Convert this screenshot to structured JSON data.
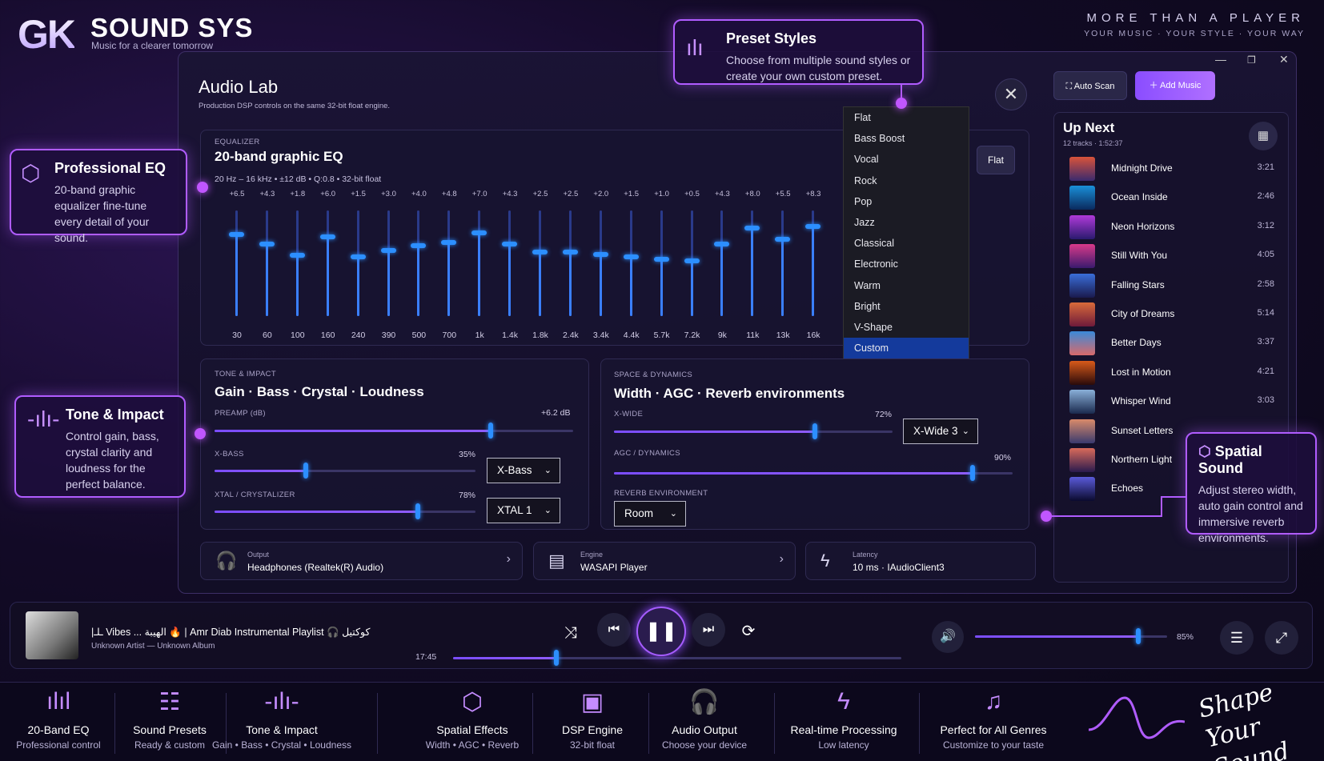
{
  "brand": {
    "logo": "GK",
    "name": "SOUND SYS",
    "tagline": "Music for a clearer tomorrow"
  },
  "motto": {
    "line1": "MORE THAN A PLAYER",
    "line2": "YOUR MUSIC · YOUR STYLE · YOUR WAY"
  },
  "callouts": {
    "preset": {
      "title": "Preset Styles",
      "text": "Choose from multiple sound styles or create your own custom preset."
    },
    "eq": {
      "title": "Professional EQ",
      "text": "20-band graphic equalizer fine-tune every detail of your sound."
    },
    "tone": {
      "title": "Tone & Impact",
      "text": "Control gain, bass, crystal clarity and loudness for the perfect balance."
    },
    "spatial": {
      "title": "Spatial Sound",
      "text": "Adjust stereo width, auto gain control and immersive reverb environments."
    }
  },
  "window": {
    "title": "Audio Lab",
    "subtitle": "Production DSP controls on the same 32-bit float engine.",
    "close": "✕"
  },
  "equalizer": {
    "section": "EQUALIZER",
    "title": "20-band graphic EQ",
    "meta": "20 Hz – 16 kHz  •  ±12 dB  •  Q:0.8  •  32-bit float",
    "flat_button": "Flat",
    "bands": [
      {
        "freq": "30",
        "db": "+6.5",
        "value": 6.5
      },
      {
        "freq": "60",
        "db": "+4.3",
        "value": 4.3
      },
      {
        "freq": "100",
        "db": "+1.8",
        "value": 1.8
      },
      {
        "freq": "160",
        "db": "+6.0",
        "value": 6.0
      },
      {
        "freq": "240",
        "db": "+1.5",
        "value": 1.5
      },
      {
        "freq": "390",
        "db": "+3.0",
        "value": 3.0
      },
      {
        "freq": "500",
        "db": "+4.0",
        "value": 4.0
      },
      {
        "freq": "700",
        "db": "+4.8",
        "value": 4.8
      },
      {
        "freq": "1k",
        "db": "+7.0",
        "value": 7.0
      },
      {
        "freq": "1.4k",
        "db": "+4.3",
        "value": 4.3
      },
      {
        "freq": "1.8k",
        "db": "+2.5",
        "value": 2.5
      },
      {
        "freq": "2.4k",
        "db": "+2.5",
        "value": 2.5
      },
      {
        "freq": "3.4k",
        "db": "+2.0",
        "value": 2.0
      },
      {
        "freq": "4.4k",
        "db": "+1.5",
        "value": 1.5
      },
      {
        "freq": "5.7k",
        "db": "+1.0",
        "value": 1.0
      },
      {
        "freq": "7.2k",
        "db": "+0.5",
        "value": 0.5
      },
      {
        "freq": "9k",
        "db": "+4.3",
        "value": 4.3
      },
      {
        "freq": "11k",
        "db": "+8.0",
        "value": 8.0
      },
      {
        "freq": "13k",
        "db": "+5.5",
        "value": 5.5
      },
      {
        "freq": "16k",
        "db": "+8.3",
        "value": 8.3
      }
    ]
  },
  "presets": {
    "items": [
      "Flat",
      "Bass Boost",
      "Vocal",
      "Rock",
      "Pop",
      "Jazz",
      "Classical",
      "Electronic",
      "Warm",
      "Bright",
      "V-Shape",
      "Custom"
    ],
    "selected": "Custom"
  },
  "tone": {
    "section": "TONE & IMPACT",
    "title": "Gain · Bass · Crystal · Loudness",
    "preamp_label": "PREAMP (dB)",
    "preamp_value": "+6.2 dB",
    "preamp_level": 0.77,
    "xbass_label": "X-BASS",
    "xbass_value": "35%",
    "xbass_level": 0.35,
    "xbass_select": "X-Bass",
    "xtal_label": "XTAL / CRYSTALIZER",
    "xtal_value": "78%",
    "xtal_level": 0.78,
    "xtal_select": "XTAL 1"
  },
  "space": {
    "section": "SPACE & DYNAMICS",
    "title": "Width · AGC · Reverb environments",
    "xwide_label": "X-WIDE",
    "xwide_value": "72%",
    "xwide_level": 0.72,
    "xwide_select": "X-Wide 3",
    "agc_label": "AGC / DYNAMICS",
    "agc_value": "90%",
    "agc_level": 0.9,
    "reverb_label": "REVERB ENVIRONMENT",
    "reverb_select": "Room"
  },
  "info": {
    "output": {
      "label": "Output",
      "value": "Headphones (Realtek(R) Audio)"
    },
    "engine": {
      "label": "Engine",
      "value": "WASAPI Player"
    },
    "latency": {
      "label": "Latency",
      "value": "10 ms · IAudioClient3"
    }
  },
  "toolbar": {
    "auto_scan": "Auto Scan",
    "add_music": "Add Music"
  },
  "upnext": {
    "title": "Up Next",
    "meta": "12 tracks · 1:52:37",
    "tracks": [
      {
        "name": "Midnight Drive",
        "duration": "3:21"
      },
      {
        "name": "Ocean Inside",
        "duration": "2:46"
      },
      {
        "name": "Neon Horizons",
        "duration": "3:12"
      },
      {
        "name": "Still With You",
        "duration": "4:05"
      },
      {
        "name": "Falling Stars",
        "duration": "2:58"
      },
      {
        "name": "City of Dreams",
        "duration": "5:14"
      },
      {
        "name": "Better Days",
        "duration": "3:37"
      },
      {
        "name": "Lost in Motion",
        "duration": "4:21"
      },
      {
        "name": "Whisper Wind",
        "duration": "3:03"
      },
      {
        "name": "Sunset Letters",
        "duration": ""
      },
      {
        "name": "Northern Light",
        "duration": ""
      },
      {
        "name": "Echoes",
        "duration": ""
      }
    ]
  },
  "player": {
    "title": "|ـلـ Vibes ... الهيبة 🔥 | Amr Diab Instrumental Playlist 🎧 كوكتيل",
    "subtitle": "Unknown Artist — Unknown Album",
    "elapsed": "17:45",
    "progress": 0.23,
    "volume": "85%",
    "volume_level": 0.85
  },
  "features": [
    {
      "title": "20-Band EQ",
      "sub": "Professional control",
      "icon": "equalizer-icon"
    },
    {
      "title": "Sound Presets",
      "sub": "Ready & custom",
      "icon": "sliders-icon"
    },
    {
      "title": "Tone & Impact",
      "sub": "Gain  •  Bass  •  Crystal  •  Loudness",
      "icon": "waveform-icon"
    },
    {
      "title": "Spatial Effects",
      "sub": "Width • AGC • Reverb",
      "icon": "cube-icon"
    },
    {
      "title": "DSP Engine",
      "sub": "32-bit float",
      "icon": "chip-icon"
    },
    {
      "title": "Audio Output",
      "sub": "Choose your device",
      "icon": "headphones-icon"
    },
    {
      "title": "Real-time Processing",
      "sub": "Low latency",
      "icon": "lightning-icon"
    },
    {
      "title": "Perfect for All Genres",
      "sub": "Customize to your taste",
      "icon": "music-note-icon"
    }
  ],
  "slogan": {
    "line1": "Shape",
    "line2": "Your Sound"
  }
}
